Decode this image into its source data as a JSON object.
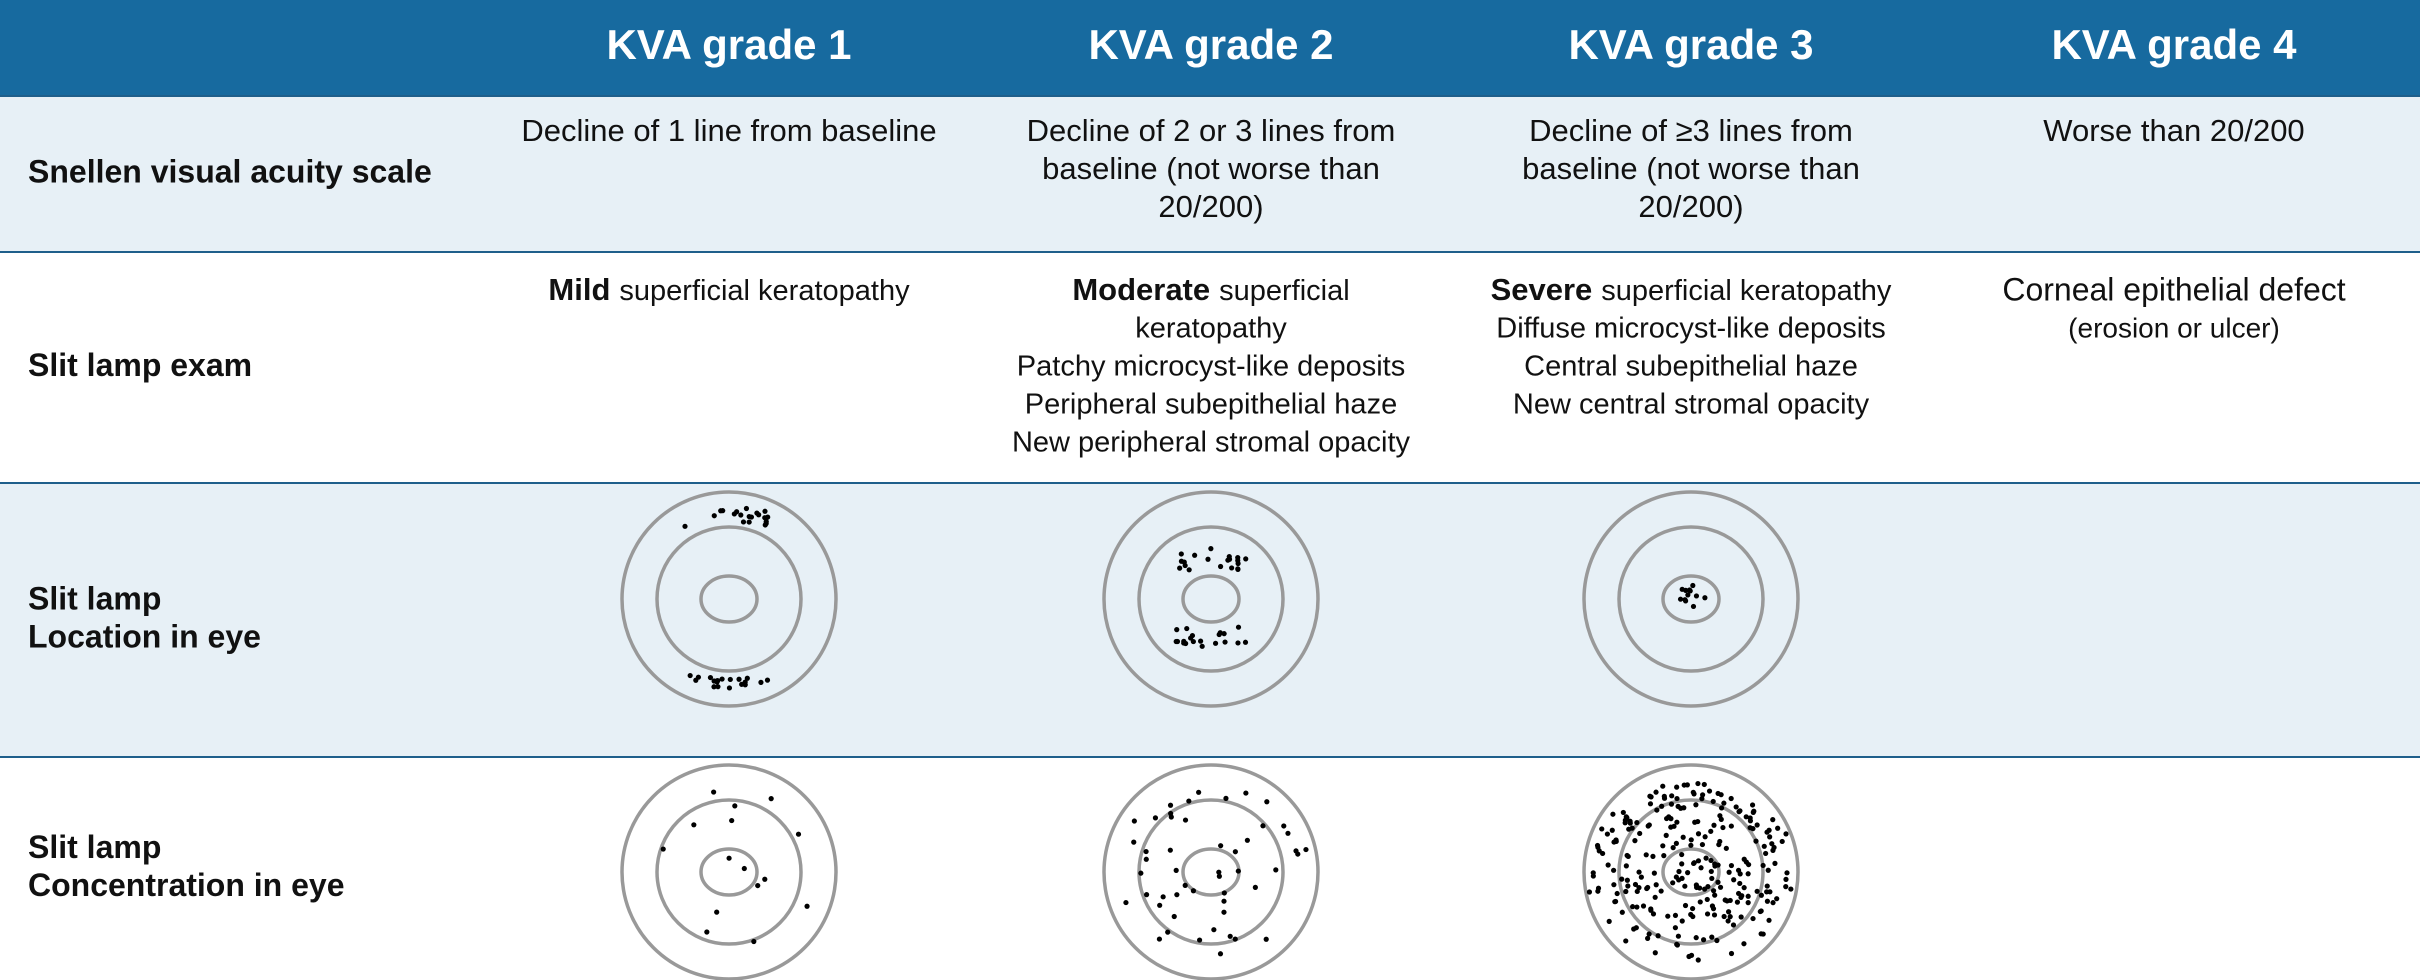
{
  "header": {
    "columns": [
      "KVA grade 1",
      "KVA grade 2",
      "KVA grade 3",
      "KVA grade 4"
    ]
  },
  "rows": [
    {
      "label": [
        "Snellen visual acuity scale"
      ],
      "cells": [
        [
          "Decline of 1 line from baseline"
        ],
        [
          "Decline of 2 or 3 lines from",
          "baseline (not worse than",
          "20/200)"
        ],
        [
          "Decline of ≥3 lines from",
          "baseline (not worse than",
          "20/200)"
        ],
        [
          "Worse than 20/200"
        ]
      ]
    },
    {
      "label": [
        "Slit lamp exam"
      ],
      "cells": [
        [
          {
            "bold": "Mild",
            "text": "superficial keratopathy"
          }
        ],
        [
          {
            "bold": "Moderate",
            "text": "superficial"
          },
          "keratopathy",
          "Patchy microcyst-like deposits",
          "Peripheral subepithelial haze",
          "New peripheral stromal opacity"
        ],
        [
          {
            "bold": "Severe",
            "text": "superficial keratopathy"
          },
          "Diffuse microcyst-like deposits",
          "Central subepithelial haze",
          "New central stromal opacity"
        ],
        [
          "Corneal epithelial defect",
          "(erosion or ulcer)"
        ]
      ]
    },
    {
      "label": [
        "Slit lamp",
        "Location in eye"
      ]
    },
    {
      "label": [
        "Slit lamp",
        "Concentration in eye"
      ]
    }
  ]
}
